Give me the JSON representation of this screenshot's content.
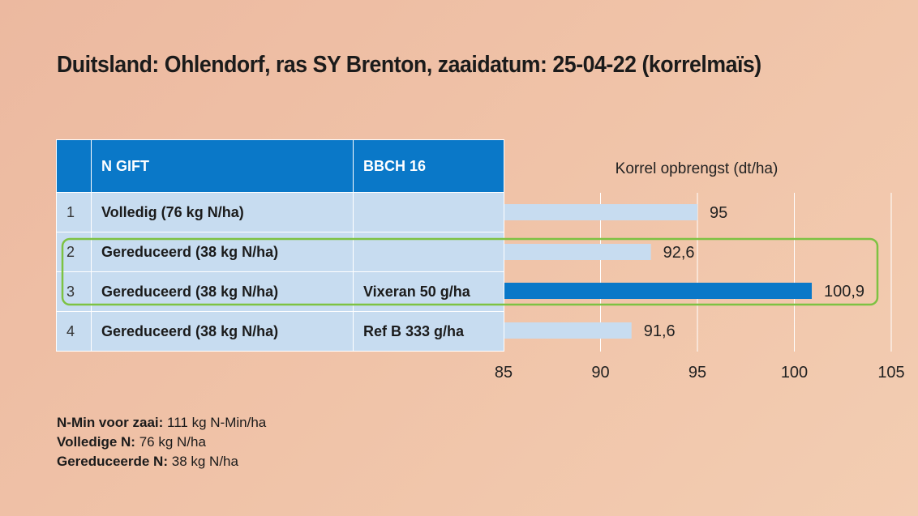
{
  "title": "Duitsland: Ohlendorf, ras SY Brenton, zaaidatum: 25-04-22 (korrelmaïs)",
  "table": {
    "headers": {
      "num": "",
      "gift": "N GIFT",
      "bbch": "BBCH 16"
    },
    "rows": [
      {
        "num": "1",
        "gift": "Volledig (76 kg N/ha)",
        "bbch": ""
      },
      {
        "num": "2",
        "gift": "Gereduceerd (38 kg N/ha)",
        "bbch": ""
      },
      {
        "num": "3",
        "gift": "Gereduceerd (38 kg N/ha)",
        "bbch": "Vixeran 50 g/ha"
      },
      {
        "num": "4",
        "gift": "Gereduceerd (38 kg N/ha)",
        "bbch": "Ref B 333 g/ha"
      }
    ]
  },
  "chart_data": {
    "type": "bar",
    "orientation": "horizontal",
    "title": "Korrel opbrengst (dt/ha)",
    "categories": [
      "1",
      "2",
      "3",
      "4"
    ],
    "values": [
      95,
      92.6,
      100.9,
      91.6
    ],
    "value_labels": [
      "95",
      "92,6",
      "100,9",
      "91,6"
    ],
    "xlim": [
      85,
      105
    ],
    "ticks": [
      85,
      90,
      95,
      100,
      105
    ],
    "tick_labels": [
      "85",
      "90",
      "95",
      "100",
      "105"
    ],
    "grid": true,
    "highlighted_rows": [
      "2",
      "3"
    ],
    "colors": {
      "default": "#c7dcf0",
      "highlight": "#0a78c8",
      "highlight_index": 2,
      "frame": "#7dc242",
      "grid": "#ffffff"
    }
  },
  "notes": [
    {
      "label": "N-Min voor zaai:",
      "value": "111 kg N-Min/ha"
    },
    {
      "label": "Volledige N:",
      "value": "76 kg N/ha"
    },
    {
      "label": "Gereduceerde N:",
      "value": "38 kg N/ha"
    }
  ]
}
